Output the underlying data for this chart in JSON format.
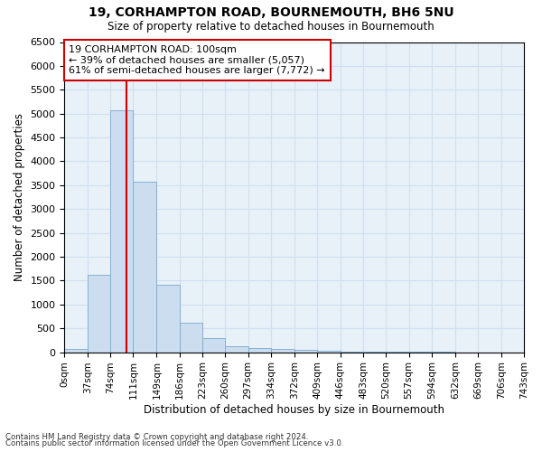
{
  "title1": "19, CORHAMPTON ROAD, BOURNEMOUTH, BH6 5NU",
  "title2": "Size of property relative to detached houses in Bournemouth",
  "xlabel": "Distribution of detached houses by size in Bournemouth",
  "ylabel": "Number of detached properties",
  "footer1": "Contains HM Land Registry data © Crown copyright and database right 2024.",
  "footer2": "Contains public sector information licensed under the Open Government Licence v3.0.",
  "bar_color": "#ccddf0",
  "bar_edgecolor": "#7aaad0",
  "vline_x": 100,
  "vline_color": "#cc0000",
  "annotation_text": "19 CORHAMPTON ROAD: 100sqm\n← 39% of detached houses are smaller (5,057)\n61% of semi-detached houses are larger (7,772) →",
  "annotation_box_color": "#ffffff",
  "annotation_box_edgecolor": "#cc0000",
  "bin_edges": [
    0,
    37,
    74,
    111,
    149,
    186,
    223,
    260,
    297,
    334,
    372,
    409,
    446,
    483,
    520,
    557,
    594,
    632,
    669,
    706,
    743
  ],
  "bin_heights": [
    65,
    1620,
    5070,
    3570,
    1410,
    610,
    290,
    130,
    90,
    60,
    50,
    30,
    20,
    10,
    5,
    3,
    2,
    1,
    0,
    0
  ],
  "xlim": [
    0,
    743
  ],
  "ylim": [
    0,
    6500
  ],
  "yticks": [
    0,
    500,
    1000,
    1500,
    2000,
    2500,
    3000,
    3500,
    4000,
    4500,
    5000,
    5500,
    6000,
    6500
  ],
  "xtick_labels": [
    "0sqm",
    "37sqm",
    "74sqm",
    "111sqm",
    "149sqm",
    "186sqm",
    "223sqm",
    "260sqm",
    "297sqm",
    "334sqm",
    "372sqm",
    "409sqm",
    "446sqm",
    "483sqm",
    "520sqm",
    "557sqm",
    "594sqm",
    "632sqm",
    "669sqm",
    "706sqm",
    "743sqm"
  ],
  "grid_color": "#d0dff0",
  "background_color": "#e8f0f8"
}
